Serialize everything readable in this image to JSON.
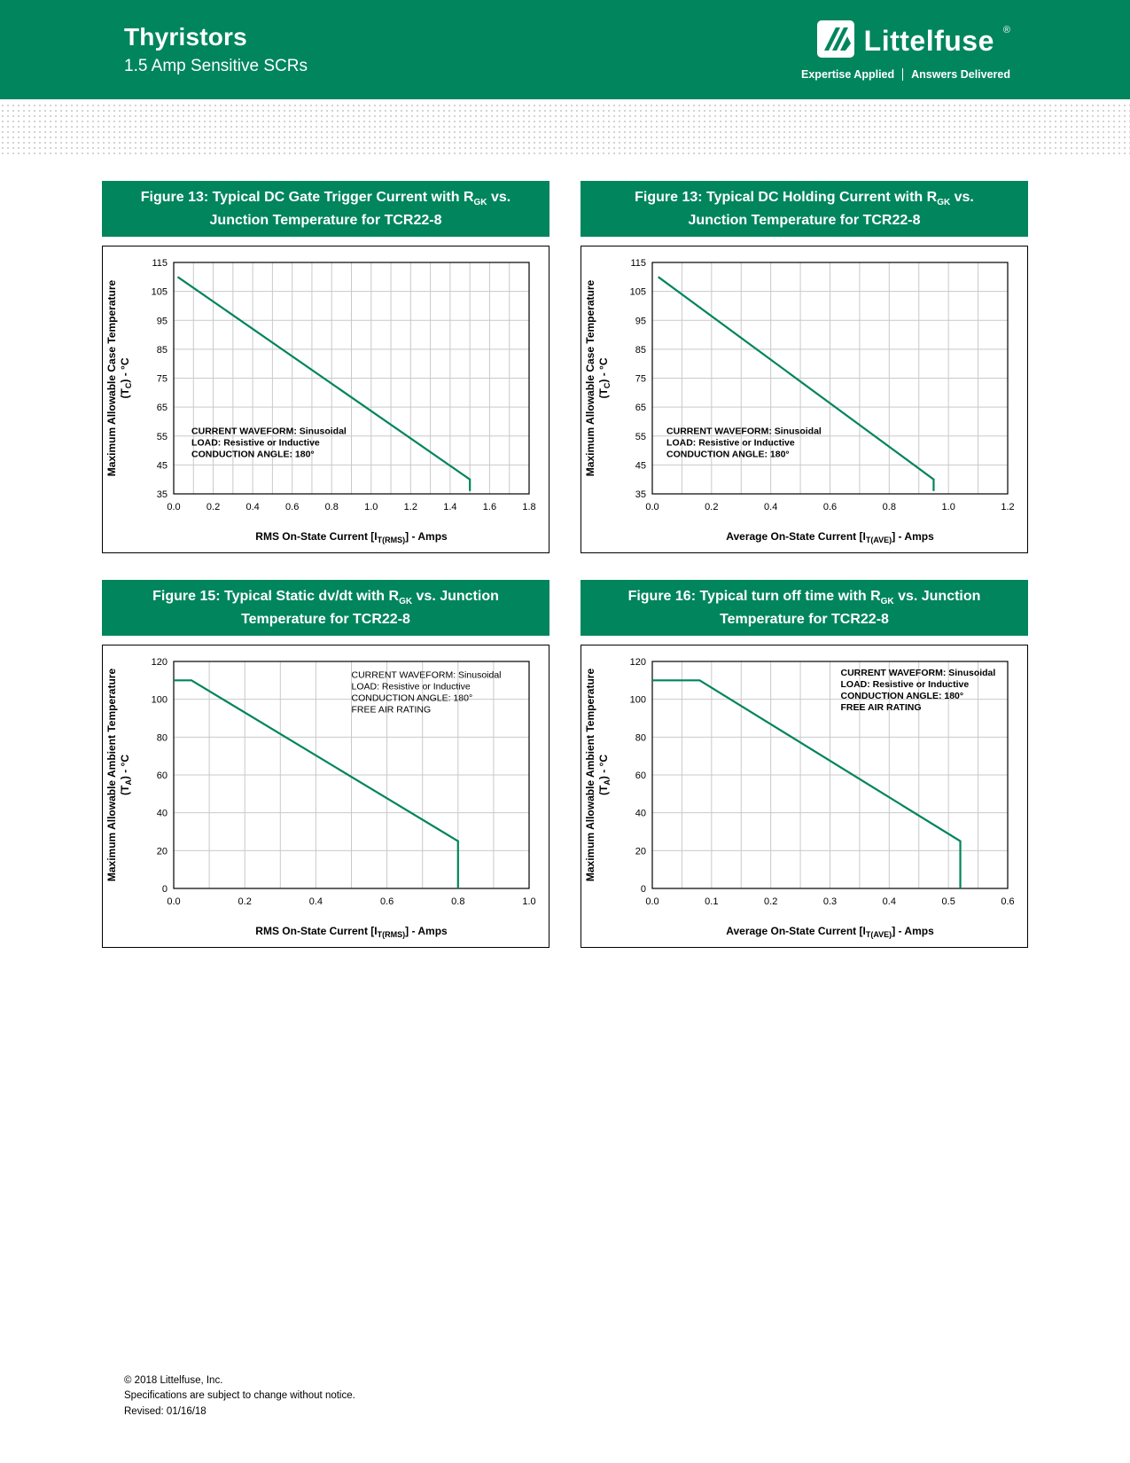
{
  "header": {
    "title": "Thyristors",
    "subtitle": "1.5 Amp Sensitive SCRs",
    "brand": "Littelfuse",
    "brand_reg": "®",
    "tagline_left": "Expertise Applied",
    "tagline_right": "Answers Delivered"
  },
  "colors": {
    "green": "#00855D",
    "line_green": "#00845D",
    "grid_gray": "#c9c9c9"
  },
  "figures": [
    {
      "title_l1a": "Figure 13: Typical DC Gate Trigger Current with R",
      "title_l1sub": "GK",
      "title_l1b": " vs.",
      "title_l2": "Junction Temperature for TCR22-8"
    },
    {
      "title_l1a": "Figure 13: Typical DC Holding Current with R",
      "title_l1sub": "GK",
      "title_l1b": " vs.",
      "title_l2": "Junction Temperature for TCR22-8"
    },
    {
      "title_l1a": "Figure 15: Typical Static dv/dt with R",
      "title_l1sub": "GK",
      "title_l1b": " vs. Junction",
      "title_l2": "Temperature for TCR22-8"
    },
    {
      "title_l1a": "Figure 16: Typical turn off time with R",
      "title_l1sub": "GK",
      "title_l1b": " vs. Junction",
      "title_l2": "Temperature for TCR22-8"
    }
  ],
  "chart_data": [
    {
      "type": "line",
      "title": "Figure 13: Typical DC Gate Trigger Current with RGK vs. Junction Temperature for TCR22-8",
      "xlabel_parts": [
        {
          "t": "RMS On-State Current [I",
          "sub": false
        },
        {
          "t": "T(RMS)",
          "sub": true
        },
        {
          "t": "] - Amps",
          "sub": false
        }
      ],
      "ylabel_line1": "Maximum Allowable Case Temperature",
      "ylabel_parts": [
        {
          "t": "(T",
          "sub": false
        },
        {
          "t": "C",
          "sub": true
        },
        {
          "t": ") - °C",
          "sub": false
        }
      ],
      "xlim": [
        0.0,
        1.8
      ],
      "ylim": [
        35,
        115
      ],
      "xticks": [
        0.0,
        0.2,
        0.4,
        0.6,
        0.8,
        1.0,
        1.2,
        1.4,
        1.6,
        1.8
      ],
      "xtick_labels": [
        "0.0",
        "0.2",
        "0.4",
        "0.6",
        "0.8",
        "1.0",
        "1.2",
        "1.4",
        "1.6",
        "1.8"
      ],
      "yticks": [
        35,
        45,
        55,
        65,
        75,
        85,
        95,
        105,
        115
      ],
      "ytick_labels": [
        "35",
        "45",
        "55",
        "65",
        "75",
        "85",
        "95",
        "105",
        "115"
      ],
      "xgrid_step": 0.1,
      "ygrid_step": 10,
      "grid": true,
      "line_color": "#00845D",
      "points": [
        [
          0.02,
          110
        ],
        [
          1.5,
          40
        ],
        [
          1.5,
          36
        ]
      ],
      "annotation": {
        "lines": [
          "CURRENT WAVEFORM: Sinusoidal",
          "LOAD: Resistive or Inductive",
          "CONDUCTION ANGLE: 180°"
        ],
        "fx": 0.05,
        "fy": 0.7,
        "bold": true
      }
    },
    {
      "type": "line",
      "title": "Figure 13: Typical DC Holding Current with RGK vs. Junction Temperature for TCR22-8",
      "xlabel_parts": [
        {
          "t": "Average On-State Current [I",
          "sub": false
        },
        {
          "t": "T(AVE)",
          "sub": true
        },
        {
          "t": "] - Amps",
          "sub": false
        }
      ],
      "ylabel_line1": "Maximum Allowable Case Temperature",
      "ylabel_parts": [
        {
          "t": "(T",
          "sub": false
        },
        {
          "t": "C",
          "sub": true
        },
        {
          "t": ") - °C",
          "sub": false
        }
      ],
      "xlim": [
        0.0,
        1.2
      ],
      "ylim": [
        35,
        115
      ],
      "xticks": [
        0.0,
        0.2,
        0.4,
        0.6,
        0.8,
        1.0,
        1.2
      ],
      "xtick_labels": [
        "0.0",
        "0.2",
        "0.4",
        "0.6",
        "0.8",
        "1.0",
        "1.2"
      ],
      "yticks": [
        35,
        45,
        55,
        65,
        75,
        85,
        95,
        105,
        115
      ],
      "ytick_labels": [
        "35",
        "45",
        "55",
        "65",
        "75",
        "85",
        "95",
        "105",
        "115"
      ],
      "xgrid_step": 0.1,
      "ygrid_step": 10,
      "grid": true,
      "line_color": "#00845D",
      "points": [
        [
          0.02,
          110
        ],
        [
          0.95,
          40
        ],
        [
          0.95,
          36
        ]
      ],
      "annotation": {
        "lines": [
          "CURRENT WAVEFORM: Sinusoidal",
          "LOAD: Resistive or Inductive",
          "CONDUCTION ANGLE: 180°"
        ],
        "fx": 0.04,
        "fy": 0.7,
        "bold": true
      }
    },
    {
      "type": "line",
      "title": "Figure 15: Typical Static dv/dt with RGK vs. Junction Temperature for TCR22-8",
      "xlabel_parts": [
        {
          "t": "RMS On-State Current [I",
          "sub": false
        },
        {
          "t": "T(RMS)",
          "sub": true
        },
        {
          "t": "] - Amps",
          "sub": false
        }
      ],
      "ylabel_line1": "Maximum Allowable Ambient Temperature",
      "ylabel_parts": [
        {
          "t": "(T",
          "sub": false
        },
        {
          "t": "A",
          "sub": true
        },
        {
          "t": ") - °C",
          "sub": false
        }
      ],
      "xlim": [
        0.0,
        1.0
      ],
      "ylim": [
        0,
        120
      ],
      "xticks": [
        0.0,
        0.2,
        0.4,
        0.6,
        0.8,
        1.0
      ],
      "xtick_labels": [
        "0.0",
        "0.2",
        "0.4",
        "0.6",
        "0.8",
        "1.0"
      ],
      "yticks": [
        0,
        20,
        40,
        60,
        80,
        100,
        120
      ],
      "ytick_labels": [
        "0",
        "20",
        "40",
        "60",
        "80",
        "100",
        "120"
      ],
      "xgrid_step": 0.1,
      "ygrid_step": 20,
      "grid": true,
      "line_color": "#00845D",
      "points": [
        [
          0.0,
          110
        ],
        [
          0.05,
          110
        ],
        [
          0.8,
          25
        ],
        [
          0.8,
          0
        ]
      ],
      "annotation": {
        "lines": [
          "CURRENT WAVEFORM: Sinusoidal",
          "LOAD: Resistive or Inductive",
          "CONDUCTION ANGLE: 180°",
          "FREE AIR RATING"
        ],
        "fx": 0.5,
        "fy": 0.03,
        "bold": false
      }
    },
    {
      "type": "line",
      "title": "Figure 16: Typical turn off time with RGK vs. Junction Temperature for TCR22-8",
      "xlabel_parts": [
        {
          "t": "Average On-State Current [I",
          "sub": false
        },
        {
          "t": "T(AVE)",
          "sub": true
        },
        {
          "t": "] - Amps",
          "sub": false
        }
      ],
      "ylabel_line1": "Maximum Allowable Ambient Temperature",
      "ylabel_parts": [
        {
          "t": "(T",
          "sub": false
        },
        {
          "t": "A",
          "sub": true
        },
        {
          "t": ") - °C",
          "sub": false
        }
      ],
      "xlim": [
        0.0,
        0.6
      ],
      "ylim": [
        0,
        120
      ],
      "xticks": [
        0.0,
        0.1,
        0.2,
        0.3,
        0.4,
        0.5,
        0.6
      ],
      "xtick_labels": [
        "0.0",
        "0.1",
        "0.2",
        "0.3",
        "0.4",
        "0.5",
        "0.6"
      ],
      "yticks": [
        0,
        20,
        40,
        60,
        80,
        100,
        120
      ],
      "ytick_labels": [
        "0",
        "20",
        "40",
        "60",
        "80",
        "100",
        "120"
      ],
      "xgrid_step": 0.05,
      "ygrid_step": 20,
      "grid": true,
      "line_color": "#00845D",
      "points": [
        [
          0.0,
          110
        ],
        [
          0.08,
          110
        ],
        [
          0.52,
          25
        ],
        [
          0.52,
          0
        ]
      ],
      "annotation": {
        "lines": [
          "CURRENT WAVEFORM: Sinusoidal",
          "LOAD: Resistive or Inductive",
          "CONDUCTION ANGLE: 180°",
          "FREE AIR RATING"
        ],
        "fx": 0.53,
        "fy": 0.02,
        "bold": true
      }
    }
  ],
  "footer": {
    "line1": "© 2018 Littelfuse, Inc.",
    "line2": "Specifications are subject to change without notice.",
    "line3": "Revised: 01/16/18"
  }
}
